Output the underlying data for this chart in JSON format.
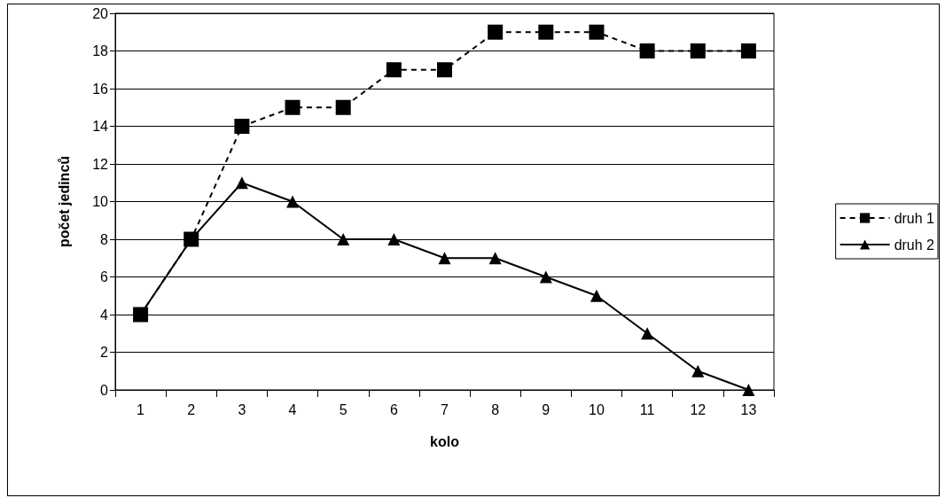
{
  "chart_data": {
    "type": "line",
    "xlabel": "kolo",
    "ylabel": "počet jedinců",
    "categories": [
      "1",
      "2",
      "3",
      "4",
      "5",
      "6",
      "7",
      "8",
      "9",
      "10",
      "11",
      "12",
      "13"
    ],
    "series": [
      {
        "name": "druh 1",
        "color": "#000000",
        "marker": "square",
        "line_style": "dashed",
        "values": [
          4,
          8,
          14,
          15,
          15,
          17,
          17,
          19,
          19,
          19,
          18,
          18,
          18
        ]
      },
      {
        "name": "druh 2",
        "color": "#000000",
        "marker": "triangle",
        "line_style": "solid",
        "values": [
          4,
          8,
          11,
          10,
          8,
          8,
          7,
          7,
          6,
          5,
          3,
          1,
          0
        ]
      }
    ],
    "ylim": [
      0,
      20
    ],
    "yticks": [
      0,
      2,
      4,
      6,
      8,
      10,
      12,
      14,
      16,
      18,
      20
    ],
    "grid": "y",
    "legend": "right"
  }
}
